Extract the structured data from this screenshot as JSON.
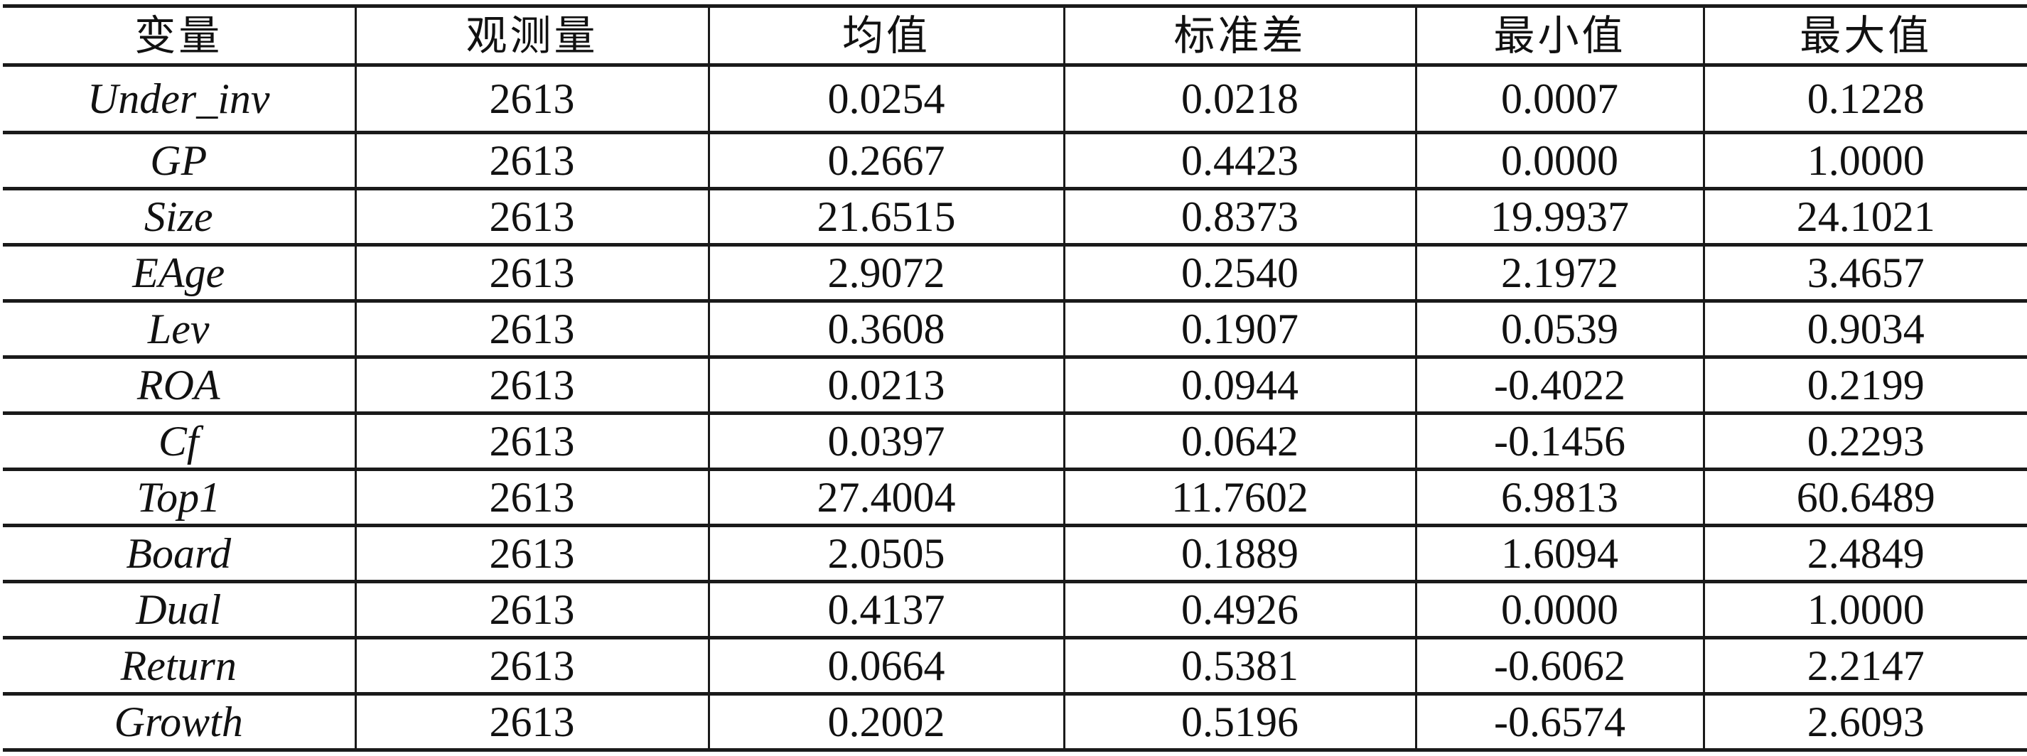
{
  "table": {
    "headers": [
      "变量",
      "观测量",
      "均值",
      "标准差",
      "最小值",
      "最大值"
    ],
    "rows": [
      [
        "Under_inv",
        "2613",
        "0.0254",
        "0.0218",
        "0.0007",
        "0.1228"
      ],
      [
        "GP",
        "2613",
        "0.2667",
        "0.4423",
        "0.0000",
        "1.0000"
      ],
      [
        "Size",
        "2613",
        "21.6515",
        "0.8373",
        "19.9937",
        "24.1021"
      ],
      [
        "EAge",
        "2613",
        "2.9072",
        "0.2540",
        "2.1972",
        "3.4657"
      ],
      [
        "Lev",
        "2613",
        "0.3608",
        "0.1907",
        "0.0539",
        "0.9034"
      ],
      [
        "ROA",
        "2613",
        "0.0213",
        "0.0944",
        "-0.4022",
        "0.2199"
      ],
      [
        "Cf",
        "2613",
        "0.0397",
        "0.0642",
        "-0.1456",
        "0.2293"
      ],
      [
        "Top1",
        "2613",
        "27.4004",
        "11.7602",
        "6.9813",
        "60.6489"
      ],
      [
        "Board",
        "2613",
        "2.0505",
        "0.1889",
        "1.6094",
        "2.4849"
      ],
      [
        "Dual",
        "2613",
        "0.4137",
        "0.4926",
        "0.0000",
        "1.0000"
      ],
      [
        "Return",
        "2613",
        "0.0664",
        "0.5381",
        "-0.6062",
        "2.2147"
      ],
      [
        "Growth",
        "2613",
        "0.2002",
        "0.5196",
        "-0.6574",
        "2.6093"
      ]
    ]
  }
}
